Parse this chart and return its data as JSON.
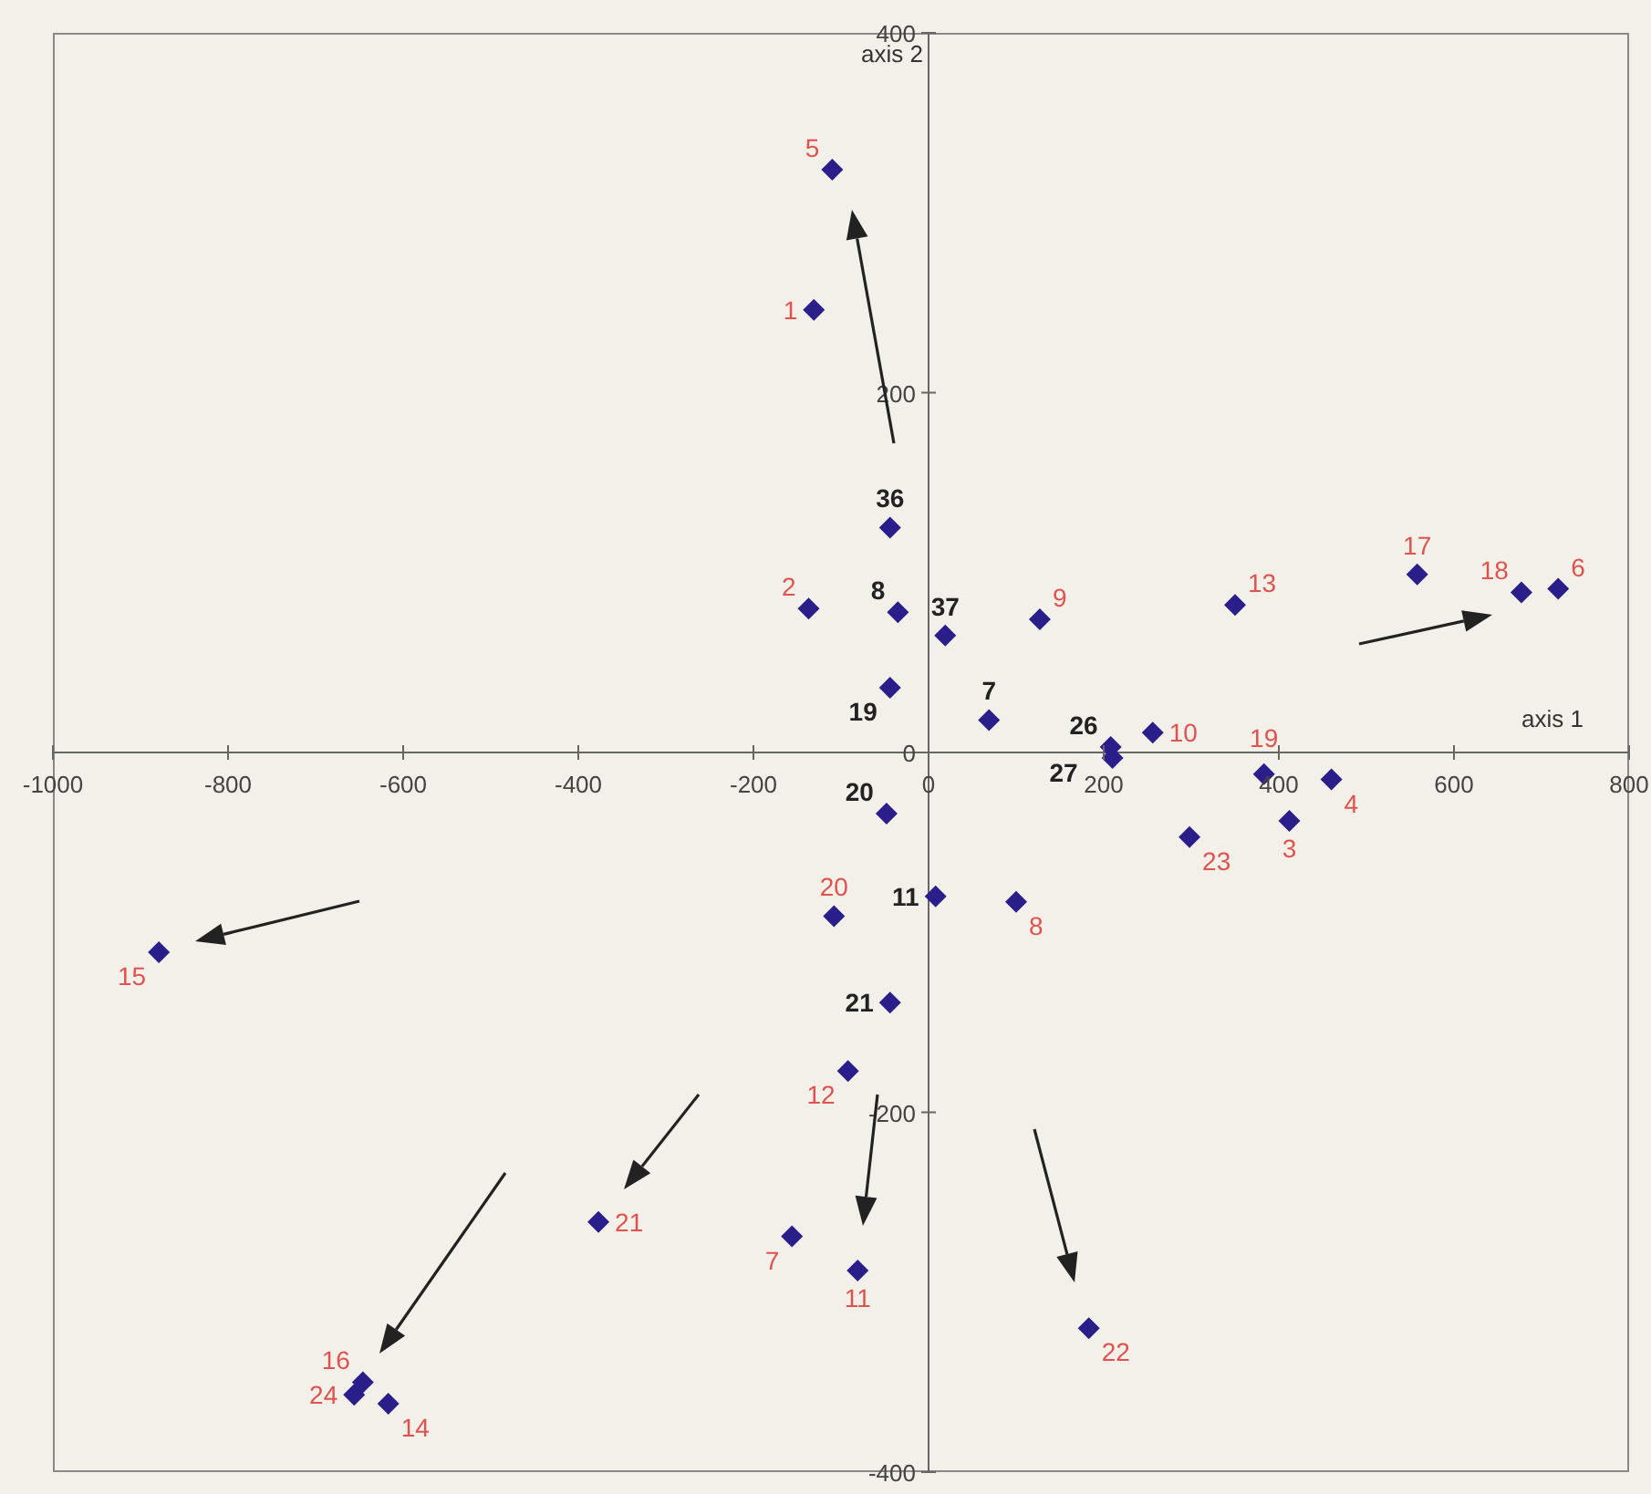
{
  "chart_data": {
    "type": "scatter",
    "xlabel": "axis 1",
    "ylabel": "axis 2",
    "xlim": [
      -1000,
      800
    ],
    "xticks": [
      -1000,
      -800,
      -600,
      -400,
      -200,
      0,
      200,
      400,
      600,
      800
    ],
    "ylim": [
      -400,
      400
    ],
    "yticks": [
      -400,
      -200,
      0,
      200,
      400
    ],
    "marker": "diamond",
    "series": [
      {
        "color": "#2a1f8a",
        "x": [
          -110,
          -131,
          -137,
          127,
          350,
          558,
          677,
          719,
          256,
          383,
          460,
          412,
          298,
          100,
          -108,
          -879,
          -92,
          -377,
          -156,
          -81,
          183,
          -646,
          -656,
          -617
        ],
        "values": [
          324,
          246,
          80,
          74,
          82,
          99,
          89,
          91,
          11,
          -12,
          -15,
          -38,
          -47,
          -83,
          -91,
          -111,
          -177,
          -261,
          -269,
          -288,
          -320,
          -350,
          -357,
          -362
        ]
      },
      {
        "color": "#2a1f8a",
        "x": [
          -44,
          -35,
          19,
          -44,
          69,
          208,
          210,
          -48,
          8,
          -44
        ],
        "values": [
          125,
          78,
          65,
          36,
          18,
          3,
          -3,
          -34,
          -80,
          -139
        ]
      }
    ],
    "annotations": [
      {
        "text": "5",
        "x": -110,
        "y": 324
      },
      {
        "text": "1",
        "x": -131,
        "y": 246
      },
      {
        "text": "2",
        "x": -137,
        "y": 80
      },
      {
        "text": "9",
        "x": 127,
        "y": 74
      },
      {
        "text": "13",
        "x": 350,
        "y": 82
      },
      {
        "text": "17",
        "x": 558,
        "y": 99
      },
      {
        "text": "18",
        "x": 677,
        "y": 89
      },
      {
        "text": "6",
        "x": 719,
        "y": 91
      },
      {
        "text": "10",
        "x": 256,
        "y": 11
      },
      {
        "text": "19",
        "x": 383,
        "y": -12
      },
      {
        "text": "4",
        "x": 460,
        "y": -15
      },
      {
        "text": "3",
        "x": 412,
        "y": -38
      },
      {
        "text": "23",
        "x": 298,
        "y": -47
      },
      {
        "text": "8",
        "x": 100,
        "y": -83
      },
      {
        "text": "20",
        "x": -108,
        "y": -91
      },
      {
        "text": "15",
        "x": -879,
        "y": -111
      },
      {
        "text": "12",
        "x": -92,
        "y": -177
      },
      {
        "text": "21",
        "x": -377,
        "y": -261
      },
      {
        "text": "7",
        "x": -156,
        "y": -269
      },
      {
        "text": "11",
        "x": -81,
        "y": -288
      },
      {
        "text": "22",
        "x": 183,
        "y": -320
      },
      {
        "text": "16",
        "x": -646,
        "y": -350
      },
      {
        "text": "24",
        "x": -656,
        "y": -357
      },
      {
        "text": "14",
        "x": -617,
        "y": -362
      },
      {
        "text": "36",
        "x": -44,
        "y": 125
      },
      {
        "text": "8",
        "x": -35,
        "y": 78
      },
      {
        "text": "37",
        "x": 19,
        "y": 65
      },
      {
        "text": "19",
        "x": -44,
        "y": 36
      },
      {
        "text": "7",
        "x": 69,
        "y": 18
      },
      {
        "text": "26",
        "x": 208,
        "y": 3
      },
      {
        "text": "27",
        "x": 210,
        "y": -3
      },
      {
        "text": "20",
        "x": -48,
        "y": -34
      },
      {
        "text": "11",
        "x": 8,
        "y": -80
      },
      {
        "text": "21",
        "x": -44,
        "y": -139
      }
    ]
  }
}
